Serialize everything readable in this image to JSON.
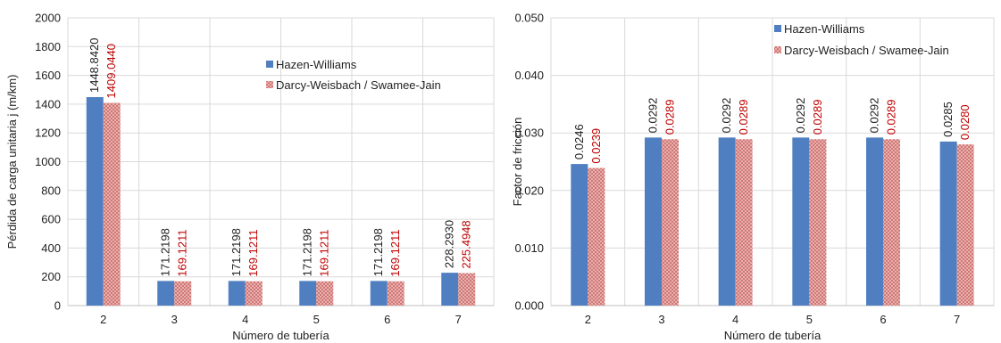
{
  "chart_data": [
    {
      "type": "bar",
      "categories": [
        "2",
        "3",
        "4",
        "5",
        "6",
        "7"
      ],
      "series": [
        {
          "name": "Hazen-Williams",
          "values": [
            1448.842,
            171.2198,
            171.2198,
            171.2198,
            171.2198,
            228.293
          ],
          "labels": [
            "1448.8420",
            "171.2198",
            "171.2198",
            "171.2198",
            "171.2198",
            "228.2930"
          ],
          "color": "#4f7fc1",
          "label_color": "#222222",
          "pattern": "solid"
        },
        {
          "name": "Darcy-Weisbach / Swamee-Jain",
          "values": [
            1409.044,
            169.1211,
            169.1211,
            169.1211,
            169.1211,
            225.4948
          ],
          "labels": [
            "1409.0440",
            "169.1211",
            "169.1211",
            "169.1211",
            "169.1211",
            "225.4948"
          ],
          "color": "#c0504d",
          "label_color": "#c00000",
          "pattern": "dots"
        }
      ],
      "title": "",
      "xlabel": "Número de tubería",
      "ylabel": "Pérdida de carga unitaria j (m/km)",
      "ylim": [
        0,
        2000
      ],
      "yticks": [
        "0",
        "200",
        "400",
        "600",
        "800",
        "1000",
        "1200",
        "1400",
        "1600",
        "1800",
        "2000"
      ],
      "grid": true,
      "legend": "center-right"
    },
    {
      "type": "bar",
      "categories": [
        "2",
        "3",
        "4",
        "5",
        "6",
        "7"
      ],
      "series": [
        {
          "name": "Hazen-Williams",
          "values": [
            0.0246,
            0.0292,
            0.0292,
            0.0292,
            0.0292,
            0.0285
          ],
          "labels": [
            "0.0246",
            "0.0292",
            "0.0292",
            "0.0292",
            "0.0292",
            "0.0285"
          ],
          "color": "#4f7fc1",
          "label_color": "#222222",
          "pattern": "solid"
        },
        {
          "name": "Darcy-Weisbach / Swamee-Jain",
          "values": [
            0.0239,
            0.0289,
            0.0289,
            0.0289,
            0.0289,
            0.028
          ],
          "labels": [
            "0.0239",
            "0.0289",
            "0.0289",
            "0.0289",
            "0.0289",
            "0.0280"
          ],
          "color": "#c0504d",
          "label_color": "#c00000",
          "pattern": "dots"
        }
      ],
      "title": "",
      "xlabel": "Número de tubería",
      "ylabel": "Factor de fricción",
      "ylim": [
        0,
        0.05
      ],
      "yticks": [
        "0.000",
        "0.010",
        "0.020",
        "0.030",
        "0.040",
        "0.050"
      ],
      "grid": true,
      "legend": "top-right"
    }
  ]
}
